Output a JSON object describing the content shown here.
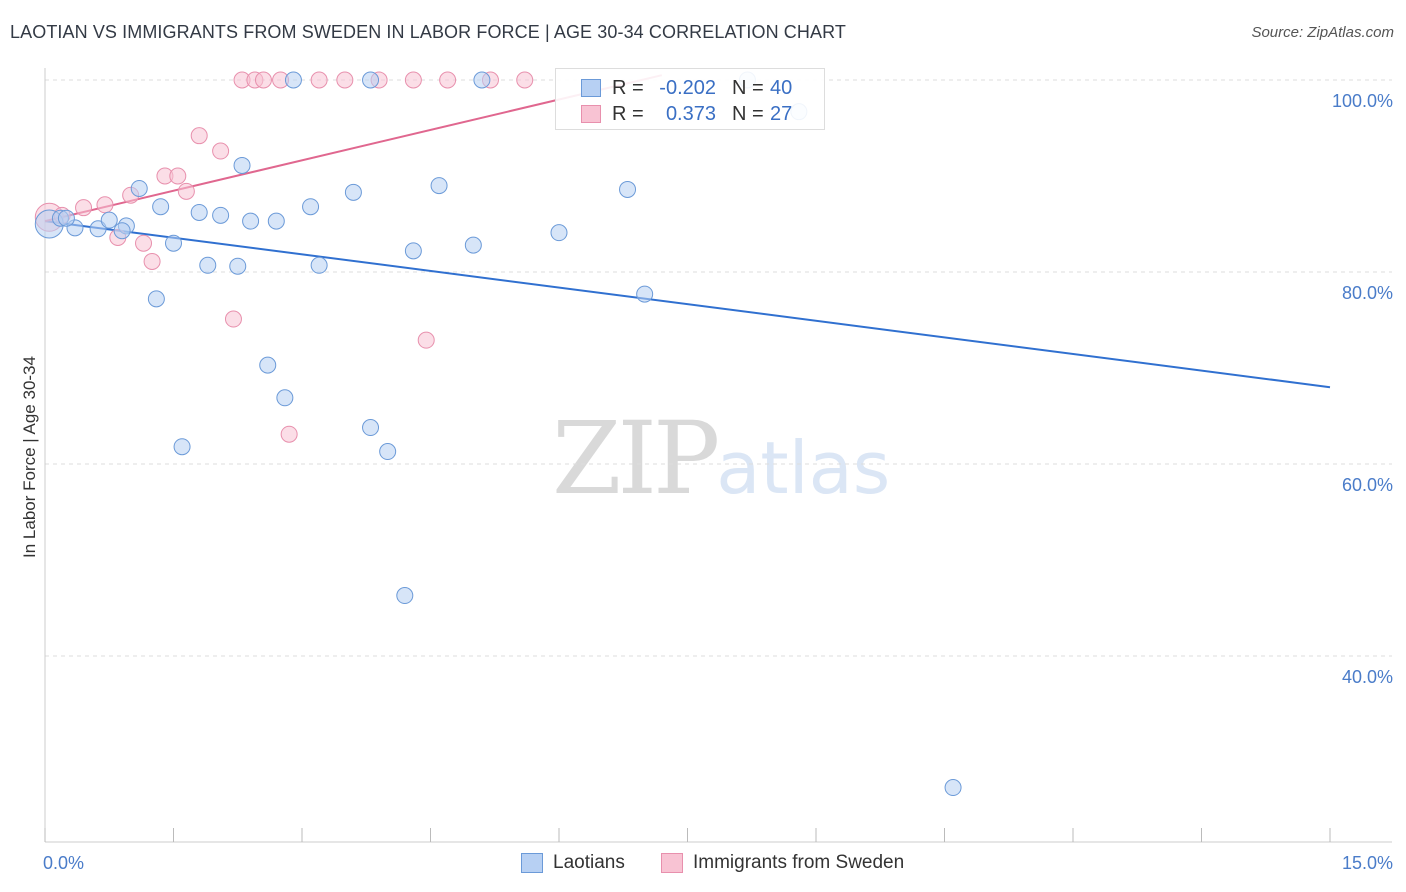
{
  "header": {
    "title": "LAOTIAN VS IMMIGRANTS FROM SWEDEN IN LABOR FORCE | AGE 30-34 CORRELATION CHART",
    "source": "Source: ZipAtlas.com"
  },
  "watermark": {
    "zip": "ZIP",
    "atlas": "atlas"
  },
  "legend": {
    "rows": [
      {
        "r_label": "R =",
        "r_value": "-0.202",
        "n_label": "N =",
        "n_value": "40"
      },
      {
        "r_label": "R =",
        "r_value": "0.373",
        "n_label": "N =",
        "n_value": "27"
      }
    ]
  },
  "colors": {
    "laotian_fill": "#b7d0f3",
    "laotian_stroke": "#6b9ad8",
    "laotian_line": "#3070d0",
    "sweden_fill": "#f8c3d3",
    "sweden_stroke": "#e890ad",
    "sweden_line": "#e0678f"
  },
  "chart_data": {
    "type": "scatter",
    "title": "LAOTIAN VS IMMIGRANTS FROM SWEDEN IN LABOR FORCE | AGE 30-34 CORRELATION CHART",
    "xlabel": "",
    "ylabel": "In Labor Force | Age 30-34",
    "xlim": [
      0,
      15
    ],
    "ylim": [
      20,
      102
    ],
    "x_tick_labels": [
      "0.0%",
      "15.0%"
    ],
    "y_ticks": [
      40,
      60,
      80,
      100
    ],
    "y_tick_labels": [
      "40.0%",
      "60.0%",
      "80.0%",
      "100.0%"
    ],
    "grid": true,
    "legend_position": "bottom",
    "series": [
      {
        "name": "Laotians",
        "trend": {
          "x": [
            0.0,
            15.0
          ],
          "y": [
            85.3,
            68.0
          ]
        },
        "points": [
          {
            "x": 0.05,
            "y": 85.0,
            "big": true
          },
          {
            "x": 0.18,
            "y": 85.6
          },
          {
            "x": 0.35,
            "y": 84.6
          },
          {
            "x": 0.62,
            "y": 84.5
          },
          {
            "x": 0.75,
            "y": 85.4
          },
          {
            "x": 0.95,
            "y": 84.8
          },
          {
            "x": 1.1,
            "y": 88.7
          },
          {
            "x": 1.35,
            "y": 86.8
          },
          {
            "x": 1.5,
            "y": 83.0
          },
          {
            "x": 1.8,
            "y": 86.2
          },
          {
            "x": 1.9,
            "y": 80.7
          },
          {
            "x": 2.05,
            "y": 85.9
          },
          {
            "x": 2.25,
            "y": 80.6
          },
          {
            "x": 2.3,
            "y": 91.1
          },
          {
            "x": 2.4,
            "y": 85.3
          },
          {
            "x": 2.7,
            "y": 85.3
          },
          {
            "x": 2.9,
            "y": 100.0
          },
          {
            "x": 3.1,
            "y": 86.8
          },
          {
            "x": 3.2,
            "y": 80.7
          },
          {
            "x": 3.6,
            "y": 88.3
          },
          {
            "x": 3.8,
            "y": 100.0
          },
          {
            "x": 4.3,
            "y": 82.2
          },
          {
            "x": 4.6,
            "y": 89.0
          },
          {
            "x": 5.0,
            "y": 82.8
          },
          {
            "x": 5.1,
            "y": 100.0
          },
          {
            "x": 6.0,
            "y": 84.1
          },
          {
            "x": 6.8,
            "y": 88.6
          },
          {
            "x": 7.0,
            "y": 77.7
          },
          {
            "x": 8.2,
            "y": 100.0
          },
          {
            "x": 8.8,
            "y": 96.7
          },
          {
            "x": 1.3,
            "y": 77.2
          },
          {
            "x": 2.6,
            "y": 70.3
          },
          {
            "x": 2.8,
            "y": 66.9
          },
          {
            "x": 1.6,
            "y": 61.8
          },
          {
            "x": 3.8,
            "y": 63.8
          },
          {
            "x": 4.0,
            "y": 61.3
          },
          {
            "x": 4.2,
            "y": 46.3
          },
          {
            "x": 10.6,
            "y": 26.3
          },
          {
            "x": 0.9,
            "y": 84.3
          },
          {
            "x": 0.25,
            "y": 85.6
          }
        ]
      },
      {
        "name": "Immigrants from Sweden",
        "trend": {
          "x": [
            0.0,
            7.2
          ],
          "y": [
            85.3,
            100.5
          ]
        },
        "points": [
          {
            "x": 0.05,
            "y": 85.7,
            "big": true
          },
          {
            "x": 0.2,
            "y": 85.9
          },
          {
            "x": 0.45,
            "y": 86.7
          },
          {
            "x": 0.7,
            "y": 87.0
          },
          {
            "x": 0.85,
            "y": 83.6
          },
          {
            "x": 1.0,
            "y": 88.0
          },
          {
            "x": 1.15,
            "y": 83.0
          },
          {
            "x": 1.25,
            "y": 81.1
          },
          {
            "x": 1.4,
            "y": 90.0
          },
          {
            "x": 1.55,
            "y": 90.0
          },
          {
            "x": 1.65,
            "y": 88.4
          },
          {
            "x": 1.8,
            "y": 94.2
          },
          {
            "x": 2.05,
            "y": 92.6
          },
          {
            "x": 2.2,
            "y": 75.1
          },
          {
            "x": 2.3,
            "y": 100.0
          },
          {
            "x": 2.45,
            "y": 100.0
          },
          {
            "x": 2.55,
            "y": 100.0
          },
          {
            "x": 2.75,
            "y": 100.0
          },
          {
            "x": 3.2,
            "y": 100.0
          },
          {
            "x": 3.5,
            "y": 100.0
          },
          {
            "x": 3.9,
            "y": 100.0
          },
          {
            "x": 4.3,
            "y": 100.0
          },
          {
            "x": 4.7,
            "y": 100.0
          },
          {
            "x": 5.2,
            "y": 100.0
          },
          {
            "x": 5.6,
            "y": 100.0
          },
          {
            "x": 2.85,
            "y": 63.1
          },
          {
            "x": 4.45,
            "y": 72.9
          }
        ]
      }
    ]
  }
}
